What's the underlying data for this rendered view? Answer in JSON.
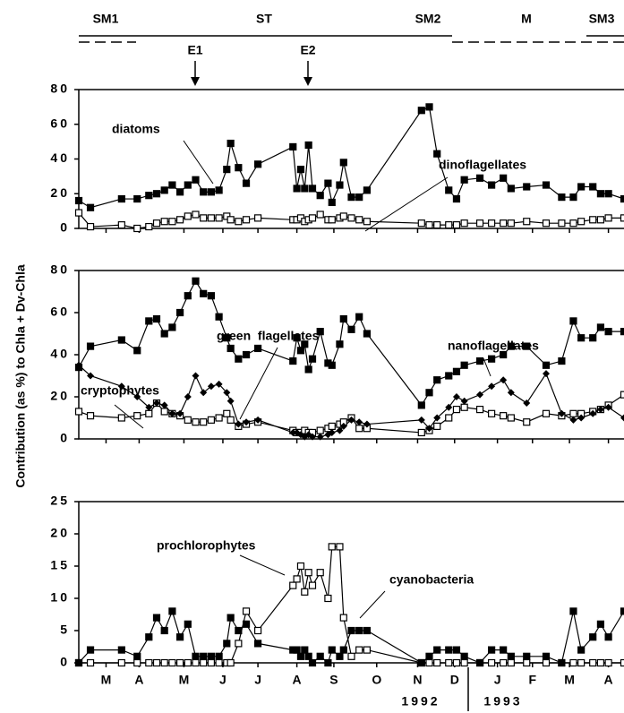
{
  "header": {
    "seasons": [
      "SM1",
      "ST",
      "SM2",
      "M",
      "SM3"
    ],
    "events": [
      "E1",
      "E2"
    ]
  },
  "y_label": "Contribution (as %) to Chla + Dv-Chla",
  "years": [
    "1992",
    "1993"
  ],
  "chart_data": [
    {
      "type": "line",
      "x": [
        0,
        0.3,
        1.1,
        1.5,
        1.8,
        2.0,
        2.2,
        2.4,
        2.6,
        2.8,
        3.0,
        3.2,
        3.4,
        3.6,
        3.8,
        3.9,
        4.1,
        4.3,
        4.6,
        5.5,
        5.6,
        5.7,
        5.8,
        5.9,
        6.0,
        6.2,
        6.4,
        6.5,
        6.7,
        6.8,
        7.0,
        7.2,
        7.4,
        8.8,
        9.0,
        9.2,
        9.5,
        9.7,
        9.9,
        10.3,
        10.6,
        10.9,
        11.1,
        11.5,
        12.0,
        12.4,
        12.7,
        12.9,
        13.2,
        13.4,
        13.6,
        14.0
      ],
      "xlim": [
        0,
        14
      ],
      "ylim": [
        0,
        80
      ],
      "yticks": [
        0,
        20,
        40,
        60,
        80
      ],
      "series": [
        {
          "name": "diatoms",
          "color": "#000000",
          "marker": "square",
          "values": [
            16,
            12,
            17,
            17,
            19,
            20,
            22,
            25,
            21,
            25,
            28,
            21,
            21,
            22,
            34,
            49,
            35,
            26,
            37,
            47,
            23,
            34,
            23,
            48,
            23,
            19,
            26,
            15,
            25,
            38,
            18,
            18,
            22,
            68,
            70,
            43,
            22,
            17,
            28,
            29,
            25,
            29,
            23,
            24,
            25,
            18,
            18,
            24,
            24,
            20,
            20,
            17
          ]
        },
        {
          "name": "dinoflagellates",
          "color": "#000000",
          "marker": "open-square",
          "values": [
            9,
            1,
            2,
            0,
            1,
            3,
            4,
            4,
            5,
            7,
            8,
            6,
            6,
            6,
            7,
            5,
            4,
            5,
            6,
            5,
            5,
            6,
            4,
            5,
            6,
            8,
            5,
            5,
            6,
            7,
            6,
            5,
            4,
            3,
            2,
            2,
            2,
            2,
            3,
            3,
            3,
            3,
            3,
            4,
            3,
            3,
            3,
            4,
            5,
            5,
            6,
            6
          ]
        }
      ]
    },
    {
      "type": "line",
      "x": [
        0,
        0.3,
        1.1,
        1.5,
        1.8,
        2.0,
        2.2,
        2.4,
        2.6,
        2.8,
        3.0,
        3.2,
        3.4,
        3.6,
        3.8,
        3.9,
        4.1,
        4.3,
        4.6,
        5.5,
        5.6,
        5.7,
        5.8,
        5.9,
        6.0,
        6.2,
        6.4,
        6.5,
        6.7,
        6.8,
        7.0,
        7.2,
        7.4,
        8.8,
        9.0,
        9.2,
        9.5,
        9.7,
        9.9,
        10.3,
        10.6,
        10.9,
        11.1,
        11.5,
        12.0,
        12.4,
        12.7,
        12.9,
        13.2,
        13.4,
        13.6,
        14.0
      ],
      "xlim": [
        0,
        14
      ],
      "ylim": [
        0,
        80
      ],
      "yticks": [
        0,
        20,
        40,
        60,
        80
      ],
      "series": [
        {
          "name": "nanoflagellates",
          "color": "#000000",
          "marker": "square",
          "values": [
            34,
            44,
            47,
            42,
            56,
            57,
            50,
            53,
            60,
            68,
            75,
            69,
            68,
            58,
            48,
            43,
            38,
            40,
            43,
            37,
            48,
            42,
            45,
            33,
            38,
            51,
            36,
            35,
            45,
            57,
            52,
            58,
            50,
            16,
            22,
            28,
            30,
            32,
            35,
            37,
            38,
            40,
            44,
            44,
            35,
            37,
            56,
            48,
            48,
            53,
            51,
            51
          ]
        },
        {
          "name": "cryptophytes",
          "color": "#000000",
          "marker": "open-square",
          "values": [
            13,
            11,
            10,
            11,
            12,
            17,
            13,
            12,
            11,
            9,
            8,
            8,
            9,
            10,
            12,
            9,
            6,
            7,
            8,
            4,
            3,
            3,
            4,
            3,
            3,
            4,
            5,
            6,
            7,
            8,
            10,
            5,
            5,
            3,
            4,
            6,
            10,
            14,
            15,
            14,
            12,
            11,
            10,
            8,
            12,
            11,
            12,
            12,
            13,
            14,
            16,
            21
          ]
        },
        {
          "name": "green  flagellates",
          "color": "#000000",
          "marker": "diamond",
          "values": [
            35,
            30,
            25,
            20,
            15,
            17,
            16,
            12,
            12,
            20,
            30,
            22,
            25,
            26,
            22,
            18,
            7,
            8,
            9,
            3,
            3,
            2,
            1,
            2,
            1,
            1,
            2,
            3,
            4,
            6,
            9,
            8,
            7,
            9,
            5,
            10,
            15,
            20,
            18,
            21,
            25,
            28,
            22,
            17,
            31,
            12,
            9,
            10,
            12,
            14,
            15,
            10
          ]
        }
      ]
    },
    {
      "type": "line",
      "x": [
        0,
        0.3,
        1.1,
        1.5,
        1.8,
        2.0,
        2.2,
        2.4,
        2.6,
        2.8,
        3.0,
        3.2,
        3.4,
        3.6,
        3.8,
        3.9,
        4.1,
        4.3,
        4.6,
        5.5,
        5.6,
        5.7,
        5.8,
        5.9,
        6.0,
        6.2,
        6.4,
        6.5,
        6.7,
        6.8,
        7.0,
        7.2,
        7.4,
        8.8,
        9.0,
        9.2,
        9.5,
        9.7,
        9.9,
        10.3,
        10.6,
        10.9,
        11.1,
        11.5,
        12.0,
        12.4,
        12.7,
        12.9,
        13.2,
        13.4,
        13.6,
        14.0
      ],
      "xlim": [
        0,
        14
      ],
      "ylim": [
        0,
        25
      ],
      "yticks": [
        0,
        5,
        10,
        15,
        20,
        25
      ],
      "xticks": [
        {
          "value": 0.7,
          "label": "M"
        },
        {
          "value": 1.55,
          "label": "A"
        },
        {
          "value": 2.7,
          "label": "M"
        },
        {
          "value": 3.7,
          "label": "J"
        },
        {
          "value": 4.6,
          "label": "J"
        },
        {
          "value": 5.6,
          "label": "A"
        },
        {
          "value": 6.55,
          "label": "S"
        },
        {
          "value": 7.65,
          "label": "O"
        },
        {
          "value": 8.7,
          "label": "N"
        },
        {
          "value": 9.65,
          "label": "D"
        },
        {
          "value": 10.75,
          "label": "J"
        },
        {
          "value": 11.65,
          "label": "F"
        },
        {
          "value": 12.6,
          "label": "M"
        },
        {
          "value": 13.6,
          "label": "A"
        }
      ],
      "series": [
        {
          "name": "prochlorophytes",
          "color": "#000000",
          "marker": "open-square",
          "values": [
            0,
            0,
            0,
            0,
            0,
            0,
            0,
            0,
            0,
            0,
            0,
            0,
            0,
            0,
            0,
            0,
            3,
            8,
            5,
            12,
            13,
            15,
            11,
            14,
            12,
            14,
            10,
            18,
            18,
            7,
            1,
            2,
            2,
            0,
            0,
            0,
            0,
            0,
            0,
            0,
            0,
            0,
            0,
            0,
            0,
            0,
            0,
            0,
            0,
            0,
            0,
            0
          ]
        },
        {
          "name": "cyanobacteria",
          "color": "#000000",
          "marker": "square",
          "values": [
            0,
            2,
            2,
            1,
            4,
            7,
            5,
            8,
            4,
            6,
            1,
            1,
            1,
            1,
            3,
            7,
            5,
            6,
            3,
            2,
            2,
            1,
            2,
            1,
            0,
            1,
            0,
            2,
            1,
            2,
            5,
            5,
            5,
            0,
            1,
            2,
            2,
            2,
            1,
            0,
            2,
            2,
            1,
            1,
            1,
            0,
            8,
            2,
            4,
            6,
            4,
            8
          ]
        }
      ]
    }
  ]
}
